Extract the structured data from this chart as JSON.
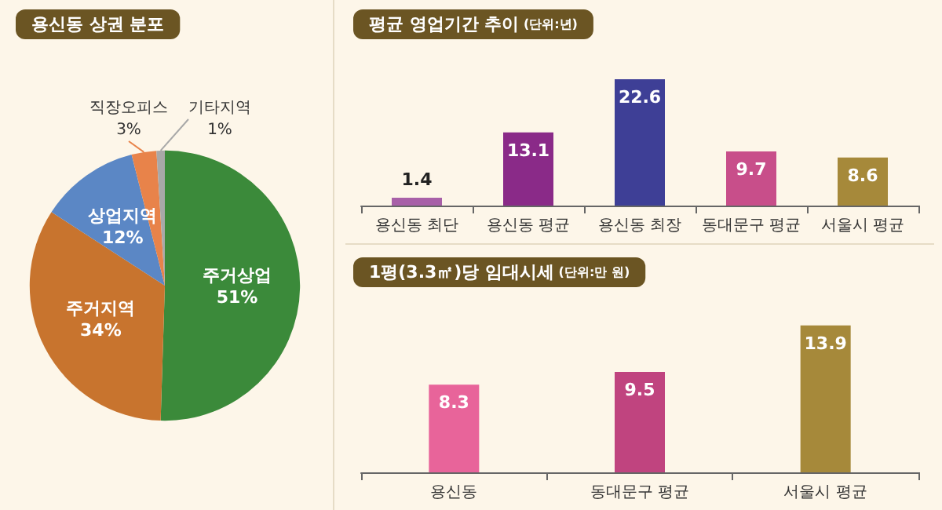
{
  "chart_data": [
    {
      "type": "pie",
      "title": "용신동 상권 분포",
      "categories": [
        "주거상업",
        "주거지역",
        "상업지역",
        "직장오피스",
        "기타지역"
      ],
      "values": [
        51,
        34,
        12,
        3,
        1
      ],
      "colors": [
        "#3b8a3a",
        "#c8742e",
        "#5b87c5",
        "#e8834a",
        "#a8a8a8"
      ],
      "value_labels": [
        "51%",
        "34%",
        "12%",
        "3%",
        "1%"
      ],
      "legend": false
    },
    {
      "type": "bar",
      "title": "평균 영업기간 추이",
      "subtitle": "(단위:년)",
      "categories": [
        "용신동 최단",
        "용신동 평균",
        "용신동 최장",
        "동대문구 평균",
        "서울시 평균"
      ],
      "values": [
        1.4,
        13.1,
        22.6,
        9.7,
        8.6
      ],
      "colors": [
        "#a860a8",
        "#8a2a88",
        "#3e3f96",
        "#c84e8a",
        "#a6893a"
      ],
      "data_labels": true,
      "tick_labels": "x",
      "legend": false
    },
    {
      "type": "bar",
      "title": "1평(3.3㎡)당 임대시세",
      "subtitle": "(단위:만 원)",
      "categories": [
        "용신동",
        "동대문구 평균",
        "서울시 평균"
      ],
      "values": [
        8.3,
        9.5,
        13.9
      ],
      "colors": [
        "#e8649a",
        "#c0447f",
        "#a6893a"
      ],
      "data_labels": true,
      "tick_labels": "x",
      "legend": false
    }
  ]
}
